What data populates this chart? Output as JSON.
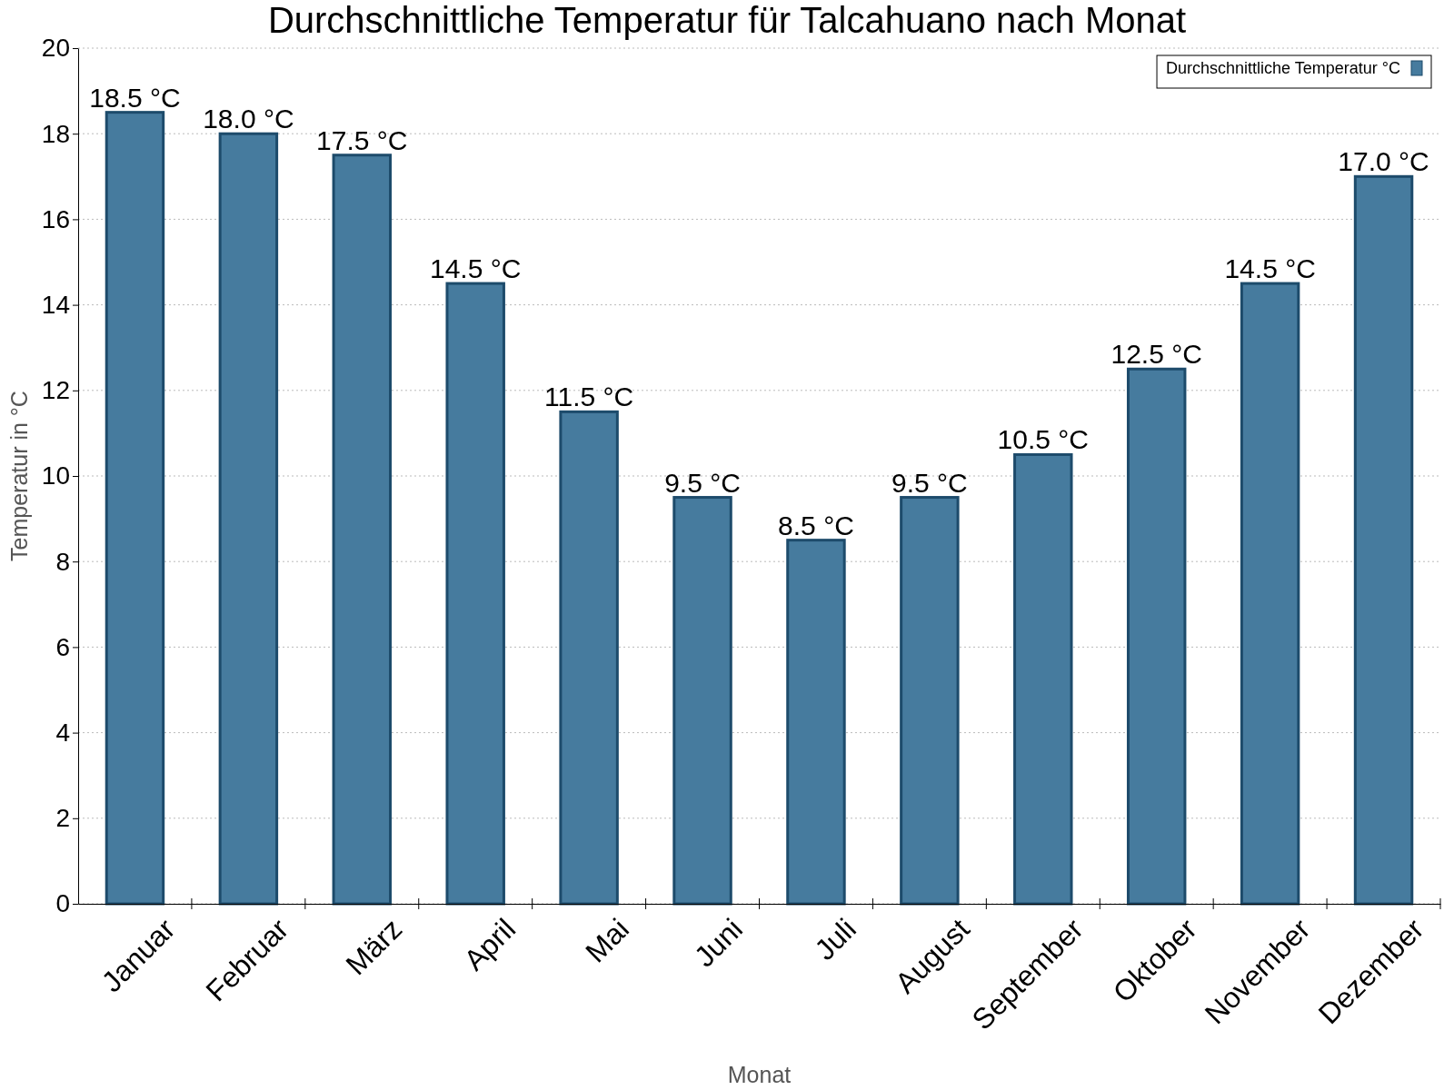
{
  "chart_data": {
    "type": "bar",
    "title": "Durchschnittliche Temperatur für Talcahuano nach Monat",
    "xlabel": "Monat",
    "ylabel": "Temperatur in °C",
    "categories": [
      "Januar",
      "Februar",
      "März",
      "April",
      "Mai",
      "Juni",
      "Juli",
      "August",
      "September",
      "Oktober",
      "November",
      "Dezember"
    ],
    "series": [
      {
        "name": "Durchschnittliche Temperatur °C",
        "color": "#467b9e",
        "values": [
          18.5,
          18.0,
          17.5,
          14.5,
          11.5,
          9.5,
          8.5,
          9.5,
          10.5,
          12.5,
          14.5,
          17.0
        ],
        "value_labels": [
          "18.5 °C",
          "18.0 °C",
          "17.5 °C",
          "14.5 °C",
          "11.5 °C",
          "9.5 °C",
          "8.5 °C",
          "9.5 °C",
          "10.5 °C",
          "12.5 °C",
          "14.5 °C",
          "17.0 °C"
        ]
      }
    ],
    "ylim": [
      0,
      20
    ],
    "yticks": [
      0,
      2,
      4,
      6,
      8,
      10,
      12,
      14,
      16,
      18,
      20
    ],
    "grid": "y",
    "legend": "top right"
  }
}
